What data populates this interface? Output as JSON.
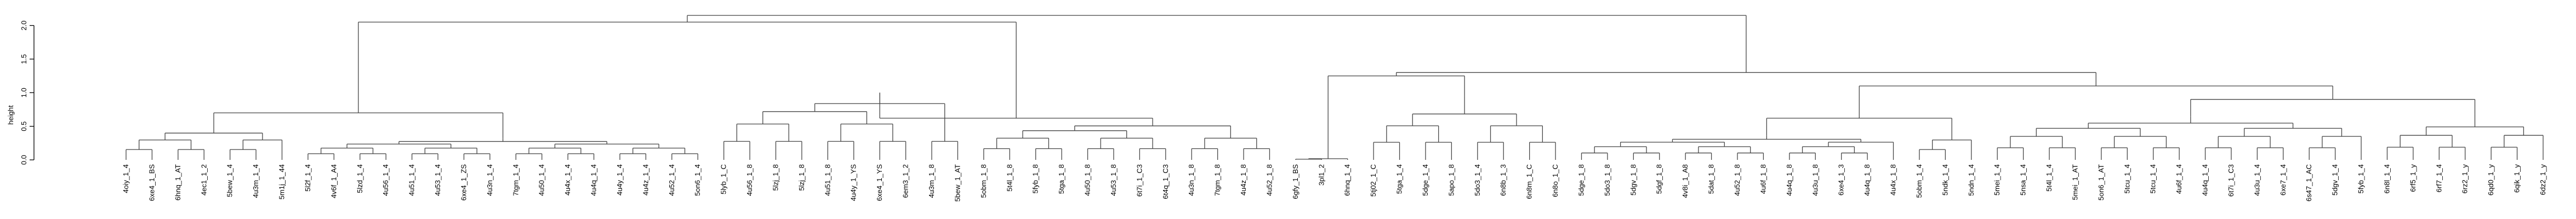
{
  "chart_data": {
    "type": "dendrogram",
    "ylabel": "height",
    "ylim": [
      0,
      2.2
    ],
    "yticks": [
      0.0,
      0.5,
      1.0,
      1.5,
      2.0
    ],
    "ytick_labels": [
      "0.0",
      "0.5",
      "1.0",
      "1.5",
      "2.0"
    ],
    "leaves": [
      "4oiy_1_4",
      "6xe4_1_BS",
      "6hnq_1_AT",
      "4ec1_1_2",
      "5bew_1_4",
      "4u3m_1_4",
      "5m1j_1_44",
      "5l2f_1_4",
      "4v6f_1_A4",
      "5lzd_1_4",
      "4u56_1_4",
      "4u51_1_4",
      "4u53_1_4",
      "6xe4_1_ZS",
      "4u3n_1_4",
      "7tgm_1_4",
      "4u50_1_4",
      "4u4x_1_4",
      "4u4q_1_4",
      "4u4y_1_4",
      "4u4z_1_4",
      "4u52_1_4",
      "5on6_1_4",
      "5lyb_1_C",
      "4u56_1_8",
      "5lzj_1_8",
      "5lzj_1_8",
      "4u51_1_8",
      "4u4y_1_YS",
      "6xe4_1_YS",
      "6em3_1_2",
      "4u3m_1_8",
      "5bew_1_AT",
      "5obm_1_8",
      "5t4l_1_8",
      "5fyb_1_8",
      "5tga_1_8",
      "4u50_1_8",
      "4u53_1_8",
      "6t7i_1_C3",
      "6t4q_1_C3",
      "4u3n_1_8",
      "7tgm_1_8",
      "4u4z_1_8",
      "4u52_1_8",
      "6gfy_1_BS",
      "3pl1_2",
      "6hnq_1_4",
      "5tj02_1_C",
      "5tga_1_4",
      "5dge_1_4",
      "5apo_1_8",
      "5do3_1_4",
      "6n8b_1_3",
      "6n8m_1_C",
      "6n8o_1_C",
      "5dge_1_8",
      "5do3_1_8",
      "5dgv_1_8",
      "5dgf_1_8",
      "4v8i_1_A8",
      "5dat_1_8",
      "4u52_1_8",
      "4u6f_1_8",
      "4u4q_1_8",
      "4u3u_1_8",
      "6xe4_1_3",
      "4u4q_1_8",
      "4u4x_1_8",
      "5obm_1_4",
      "5ndk_1_4",
      "5ndn_1_4",
      "5mei_1_4",
      "5nsa_1_4",
      "5t4l_1_4",
      "5mei_1_AT",
      "5on6_1_AT",
      "5tcu_1_4",
      "5tcu_1_4",
      "4u6f_1_4",
      "4u4q_1_4",
      "6t7i_1_C3",
      "4u3u_1_4",
      "6xe7_1_4",
      "6s47_1_AC",
      "5dgv_1_4",
      "5fyb_1_4",
      "6n8l_1_4",
      "6rf5_1_y",
      "6rf7_1_4",
      "6rz2_1_y",
      "6qd0_1_y",
      "6qik_1_y",
      "6dz2_1_y"
    ],
    "groups": [
      {
        "first": 0,
        "last": 6,
        "height": 0.55
      },
      {
        "first": 7,
        "last": 22,
        "height": 0.32
      },
      {
        "first": 23,
        "last": 32,
        "height": 1.0
      },
      {
        "first": 33,
        "last": 44,
        "height": 0.6
      },
      {
        "first": 45,
        "last": 47,
        "height": 0.02
      },
      {
        "first": 48,
        "last": 55,
        "height": 0.95
      },
      {
        "first": 56,
        "last": 68,
        "height": 0.36
      },
      {
        "first": 69,
        "last": 71,
        "height": 0.55
      },
      {
        "first": 72,
        "last": 86,
        "height": 0.65
      },
      {
        "first": 87,
        "last": 93,
        "height": 0.68
      }
    ],
    "top_merges": [
      {
        "between": [
          0,
          1
        ],
        "height": 0.55
      },
      {
        "between": [
          2,
          3
        ],
        "height": 0.5
      },
      {
        "between": [
          5,
          6
        ],
        "height": 0.8
      },
      {
        "between": [
          7,
          8
        ],
        "height": 0.62
      },
      {
        "between": [
          8,
          9
        ],
        "height": 0.68
      },
      {
        "between": [
          0,
          2
        ],
        "height": 2.05
      },
      {
        "between": [
          4,
          5
        ],
        "height": 1.25
      },
      {
        "between": [
          0,
          4
        ],
        "height": 2.15
      }
    ]
  }
}
